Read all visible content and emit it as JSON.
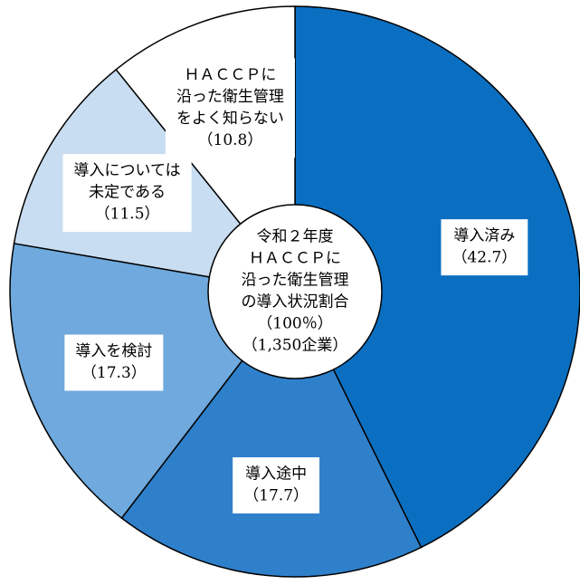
{
  "chart_data": {
    "type": "donut",
    "title": [
      "令和２年度",
      "ＨＡＣＣＰに",
      "沿った衛生管理",
      "の導入状況割合",
      "（100％）",
      "（1,350企業）"
    ],
    "categories": [
      [
        "導入済み"
      ],
      [
        "導入途中"
      ],
      [
        "導入を検討"
      ],
      [
        "導入については",
        "未定である"
      ],
      [
        "ＨＡＣＣＰに",
        "沿った衛生管理",
        "をよく知らない"
      ]
    ],
    "values": [
      42.7,
      17.7,
      17.3,
      11.5,
      10.8
    ],
    "value_labels": [
      "（42.7）",
      "（17.7）",
      "（17.3）",
      "（11.5）",
      "（10.8）"
    ],
    "colors": [
      "#0b6fc1",
      "#2f80cb",
      "#6fa9dd",
      "#c8ddf1",
      "#ffffff"
    ]
  }
}
